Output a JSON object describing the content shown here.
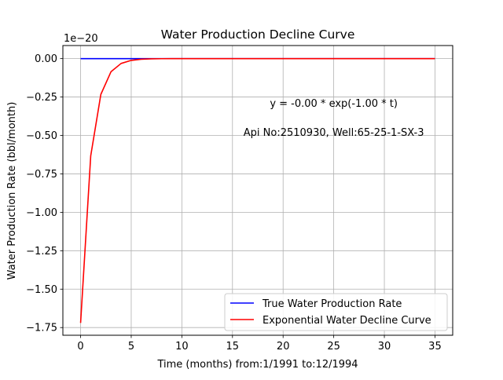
{
  "chart_data": {
    "type": "line",
    "title": "Water Production Decline Curve",
    "xlabel": "Time (months) from:1/1991 to:12/1994",
    "ylabel": "Water Production Rate (bbl/month)",
    "y_offset_label": "1e−20",
    "xlim": [
      -1.75,
      36.75
    ],
    "ylim": [
      -1.8,
      0.085
    ],
    "x_ticks": [
      0,
      5,
      10,
      15,
      20,
      25,
      30,
      35
    ],
    "x_tick_labels": [
      "0",
      "5",
      "10",
      "15",
      "20",
      "25",
      "30",
      "35"
    ],
    "y_ticks": [
      0.0,
      -0.25,
      -0.5,
      -0.75,
      -1.0,
      -1.25,
      -1.5,
      -1.75
    ],
    "y_tick_labels": [
      "0.00",
      "−0.25",
      "−0.50",
      "−0.75",
      "−1.00",
      "−1.25",
      "−1.50",
      "−1.75"
    ],
    "grid": true,
    "legend_position": "bottom-right",
    "annotations": [
      {
        "text": "y = -0.00 * exp(-1.00 * t)",
        "x": 25,
        "y": -0.29
      },
      {
        "text": "Api No:2510930, Well:65-25-1-SX-3",
        "x": 25,
        "y": -0.48
      }
    ],
    "series": [
      {
        "name": "True Water Production Rate",
        "color": "#0000ff",
        "x": [
          0,
          1,
          2,
          3,
          4,
          5,
          6,
          7,
          8,
          9,
          10,
          11,
          12,
          13,
          14,
          15,
          16,
          17,
          18,
          19,
          20,
          21,
          22,
          23,
          24,
          25,
          26,
          27,
          28,
          29,
          30,
          31,
          32,
          33,
          34,
          35
        ],
        "y": [
          0,
          0,
          0,
          0,
          0,
          0,
          0,
          0,
          0,
          0,
          0,
          0,
          0,
          0,
          0,
          0,
          0,
          0,
          0,
          0,
          0,
          0,
          0,
          0,
          0,
          0,
          0,
          0,
          0,
          0,
          0,
          0,
          0,
          0,
          0,
          0
        ]
      },
      {
        "name": "Exponential Water Decline Curve",
        "color": "#ff0000",
        "x": [
          0,
          1,
          2,
          3,
          4,
          5,
          6,
          7,
          8,
          9,
          10,
          11,
          12,
          13,
          14,
          15,
          16,
          17,
          18,
          19,
          20,
          21,
          22,
          23,
          24,
          25,
          26,
          27,
          28,
          29,
          30,
          31,
          32,
          33,
          34,
          35
        ],
        "y": [
          -1.72,
          -0.633,
          -0.233,
          -0.0856,
          -0.0315,
          -0.0116,
          -0.0043,
          -0.0016,
          -0.0006,
          -0.0002,
          -0.0001,
          0,
          0,
          0,
          0,
          0,
          0,
          0,
          0,
          0,
          0,
          0,
          0,
          0,
          0,
          0,
          0,
          0,
          0,
          0,
          0,
          0,
          0,
          0,
          0,
          0
        ]
      }
    ]
  }
}
